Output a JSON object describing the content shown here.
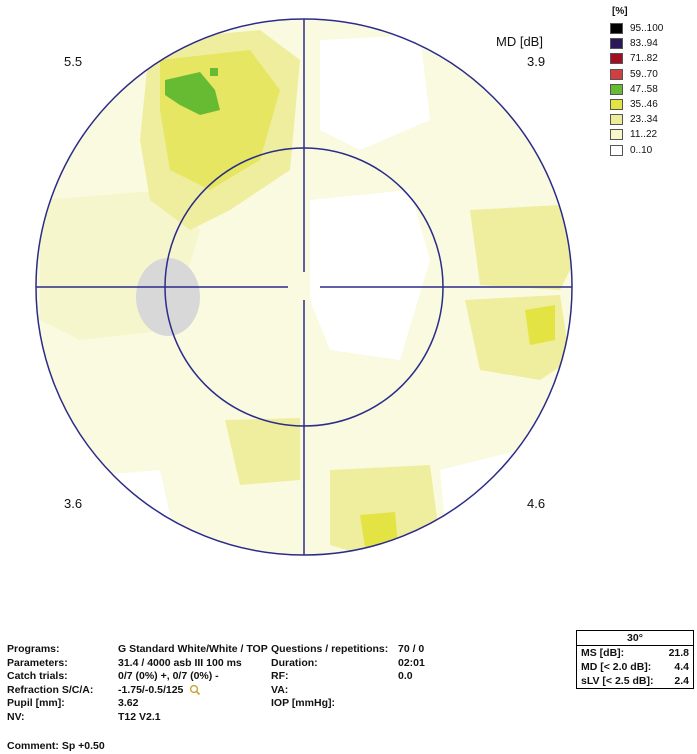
{
  "legend": {
    "unit": "[%]",
    "items": [
      {
        "label": "95..100",
        "color": "#000000"
      },
      {
        "label": "83..94",
        "color": "#2a1858"
      },
      {
        "label": "71..82",
        "color": "#a01020"
      },
      {
        "label": "59..70",
        "color": "#d04040"
      },
      {
        "label": "47..58",
        "color": "#66bb33"
      },
      {
        "label": "35..46",
        "color": "#e3e344"
      },
      {
        "label": "23..34",
        "color": "#eded99"
      },
      {
        "label": "11..22",
        "color": "#f8f8c8"
      },
      {
        "label": "0..10",
        "color": "#ffffff"
      }
    ]
  },
  "md_label": "MD [dB]",
  "quadrants": {
    "top_left": "5.5",
    "top_right": "3.9",
    "bottom_left": "3.6",
    "bottom_right": "4.6"
  },
  "info": {
    "labels": [
      "Programs:",
      "Parameters:",
      "Catch trials:",
      "Refraction S/C/A:",
      "Pupil [mm]:",
      "NV:"
    ],
    "values": [
      "G Standard   White/White / TOP",
      "31.4  / 4000 asb III 100 ms",
      "0/7 (0%) +, 0/7 (0%) -",
      "-1.75/-0.5/125",
      "3.62",
      "T12 V2.1"
    ],
    "labels2": [
      "Questions / repetitions:",
      "Duration:",
      "RF:",
      "VA:",
      "IOP [mmHg]:"
    ],
    "values2": [
      "70 / 0",
      "02:01",
      "0.0",
      "",
      ""
    ]
  },
  "stats": {
    "header": "30°",
    "rows": [
      {
        "label": "MS [dB]:",
        "value": "21.8"
      },
      {
        "label": "MD [< 2.0 dB]:",
        "value": "4.4"
      },
      {
        "label": "sLV [< 2.5 dB]:",
        "value": "2.4"
      }
    ]
  },
  "comment": "Comment: Sp +0.50"
}
